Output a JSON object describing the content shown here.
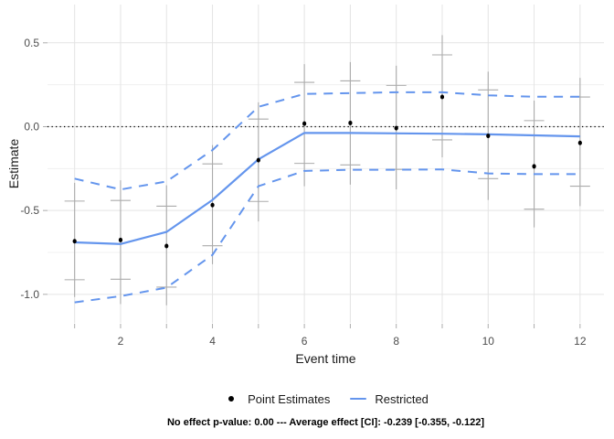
{
  "figure": {
    "caption": "No effect p-value: 0.00 --- Average effect [CI]: -0.239 [-0.355, -0.122]"
  },
  "legend": {
    "items": [
      {
        "label": "Point Estimates",
        "marker": "point",
        "color": "#000000"
      },
      {
        "label": "Restricted",
        "marker": "line",
        "color": "#6495ED"
      }
    ]
  },
  "chart_data": {
    "type": "line",
    "title": "",
    "xlabel": "Event time",
    "ylabel": "Estimate",
    "grid": true,
    "legend_position": "bottom",
    "x": [
      1,
      2,
      3,
      4,
      5,
      6,
      7,
      8,
      9,
      10,
      11,
      12
    ],
    "xlim": [
      0.41,
      12.52
    ],
    "ylim": [
      -1.17,
      0.728
    ],
    "x_tick_marks": [
      1,
      2,
      3,
      4,
      5,
      6,
      7,
      8,
      9,
      10,
      11,
      12
    ],
    "x_tick_labels": [
      {
        "t": 2,
        "label": "2"
      },
      {
        "t": 4,
        "label": "4"
      },
      {
        "t": 6,
        "label": "6"
      },
      {
        "t": 8,
        "label": "8"
      },
      {
        "t": 10,
        "label": "10"
      },
      {
        "t": 12,
        "label": "12"
      }
    ],
    "y_ticks": [
      {
        "v": 0.5,
        "label": "0.5"
      },
      {
        "v": 0.0,
        "label": "0.0"
      },
      {
        "v": -0.5,
        "label": "-0.5"
      },
      {
        "v": -1.0,
        "label": "-1.0"
      }
    ],
    "y_grid_major": [
      0.5,
      0.0,
      -0.5,
      -1.0
    ],
    "y_grid_minor": [
      0.25,
      -0.25,
      -0.75
    ],
    "reference_line": {
      "y": 0,
      "style": "dotted",
      "color": "#000000"
    },
    "series": [
      {
        "name": "Point Estimates",
        "kind": "scatter",
        "color": "#000000",
        "values": [
          -0.683,
          -0.676,
          -0.712,
          -0.468,
          -0.2,
          0.018,
          0.022,
          -0.009,
          0.177,
          -0.055,
          -0.237,
          -0.097
        ]
      },
      {
        "name": "Point Estimates CI (capped)",
        "kind": "interval-caps",
        "color": "#ABABAB",
        "upper": [
          -0.444,
          -0.44,
          -0.474,
          -0.222,
          0.045,
          0.264,
          0.273,
          0.246,
          0.428,
          0.219,
          0.036,
          0.177
        ],
        "lower": [
          -0.913,
          -0.91,
          -0.957,
          -0.71,
          -0.446,
          -0.219,
          -0.228,
          -0.255,
          -0.079,
          -0.31,
          -0.492,
          -0.355
        ]
      },
      {
        "name": "Point Estimates CI (outer band)",
        "kind": "interval-lines",
        "color": "#ABABAB",
        "upper": [
          -0.335,
          -0.32,
          -0.35,
          -0.11,
          0.145,
          0.373,
          0.385,
          0.363,
          0.546,
          0.328,
          0.155,
          0.291
        ],
        "lower": [
          -1.016,
          -1.058,
          -1.065,
          -0.82,
          -0.565,
          -0.355,
          -0.346,
          -0.374,
          -0.183,
          -0.437,
          -0.601,
          -0.474
        ]
      },
      {
        "name": "Restricted",
        "kind": "line",
        "color": "#6495ED",
        "values": [
          -0.69,
          -0.7,
          -0.628,
          -0.437,
          -0.195,
          -0.037,
          -0.038,
          -0.04,
          -0.042,
          -0.046,
          -0.052,
          -0.058
        ]
      },
      {
        "name": "Restricted CI upper",
        "kind": "line-dashed",
        "color": "#6495ED",
        "values": [
          -0.31,
          -0.375,
          -0.327,
          -0.14,
          0.118,
          0.195,
          0.2,
          0.205,
          0.205,
          0.187,
          0.178,
          0.178
        ]
      },
      {
        "name": "Restricted CI lower",
        "kind": "line-dashed",
        "color": "#6495ED",
        "values": [
          -1.048,
          -1.011,
          -0.96,
          -0.765,
          -0.355,
          -0.264,
          -0.257,
          -0.257,
          -0.255,
          -0.279,
          -0.283,
          -0.283
        ]
      }
    ],
    "colors": {
      "line_blue": "#6495ED",
      "errorbar_gray": "#ABABAB",
      "grid_major": "#E4E4E4",
      "grid_minor": "#F0F0F0",
      "axis_tick": "#ACACAC",
      "tick_label": "#4D4D4D",
      "point_black": "#000000"
    }
  }
}
